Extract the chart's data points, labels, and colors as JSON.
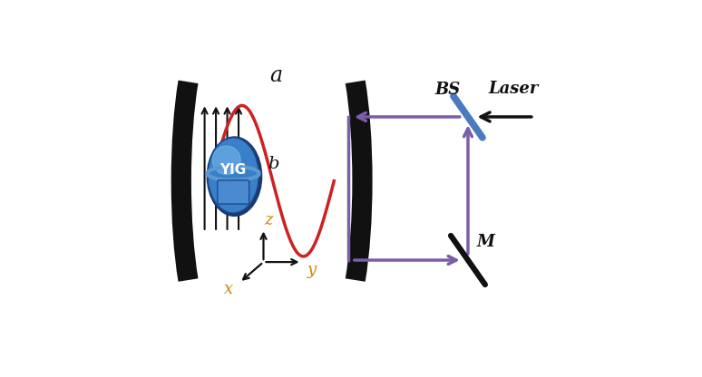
{
  "fig_width": 7.74,
  "fig_height": 4.16,
  "bg_color": "#ffffff",
  "cavity_mirror_color": "#111111",
  "wave_color": "#cc2222",
  "wave_label_a": "a",
  "wave_label_b": "b",
  "yig_label": "YIG",
  "bs_color": "#4a7abf",
  "bs_label": "BS",
  "laser_label": "Laser",
  "mirror_label": "M",
  "loop_color": "#7b5ea7",
  "loop_lw": 2.5,
  "label_color_italic": "#cc8800",
  "xaxis_label": "x",
  "yaxis_label": "y",
  "zaxis_label": "z"
}
